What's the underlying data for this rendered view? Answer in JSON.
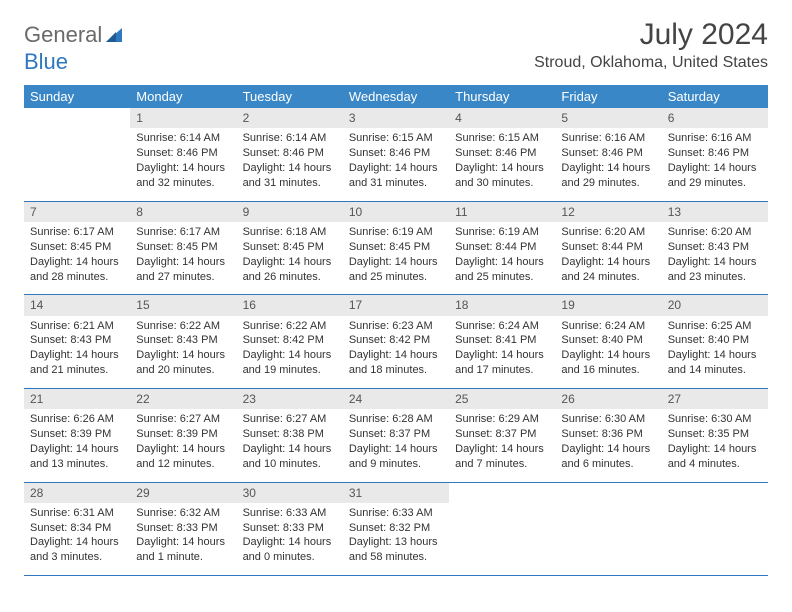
{
  "logo": {
    "word1": "General",
    "word2": "Blue"
  },
  "title": "July 2024",
  "location": "Stroud, Oklahoma, United States",
  "colors": {
    "header_bg": "#3a87c7",
    "header_text": "#ffffff",
    "daynum_bg": "#e9e9e9",
    "row_divider": "#2f78bd",
    "logo_gray": "#6a6a6a",
    "logo_blue": "#2f78bd",
    "body_text": "#333333",
    "background": "#ffffff"
  },
  "fonts": {
    "title_size_pt": 22,
    "location_size_pt": 12,
    "dayheader_size_pt": 10,
    "cell_size_pt": 8
  },
  "day_headers": [
    "Sunday",
    "Monday",
    "Tuesday",
    "Wednesday",
    "Thursday",
    "Friday",
    "Saturday"
  ],
  "weeks": [
    {
      "nums": [
        "",
        "1",
        "2",
        "3",
        "4",
        "5",
        "6"
      ],
      "cells": [
        "",
        "Sunrise: 6:14 AM\nSunset: 8:46 PM\nDaylight: 14 hours and 32 minutes.",
        "Sunrise: 6:14 AM\nSunset: 8:46 PM\nDaylight: 14 hours and 31 minutes.",
        "Sunrise: 6:15 AM\nSunset: 8:46 PM\nDaylight: 14 hours and 31 minutes.",
        "Sunrise: 6:15 AM\nSunset: 8:46 PM\nDaylight: 14 hours and 30 minutes.",
        "Sunrise: 6:16 AM\nSunset: 8:46 PM\nDaylight: 14 hours and 29 minutes.",
        "Sunrise: 6:16 AM\nSunset: 8:46 PM\nDaylight: 14 hours and 29 minutes."
      ]
    },
    {
      "nums": [
        "7",
        "8",
        "9",
        "10",
        "11",
        "12",
        "13"
      ],
      "cells": [
        "Sunrise: 6:17 AM\nSunset: 8:45 PM\nDaylight: 14 hours and 28 minutes.",
        "Sunrise: 6:17 AM\nSunset: 8:45 PM\nDaylight: 14 hours and 27 minutes.",
        "Sunrise: 6:18 AM\nSunset: 8:45 PM\nDaylight: 14 hours and 26 minutes.",
        "Sunrise: 6:19 AM\nSunset: 8:45 PM\nDaylight: 14 hours and 25 minutes.",
        "Sunrise: 6:19 AM\nSunset: 8:44 PM\nDaylight: 14 hours and 25 minutes.",
        "Sunrise: 6:20 AM\nSunset: 8:44 PM\nDaylight: 14 hours and 24 minutes.",
        "Sunrise: 6:20 AM\nSunset: 8:43 PM\nDaylight: 14 hours and 23 minutes."
      ]
    },
    {
      "nums": [
        "14",
        "15",
        "16",
        "17",
        "18",
        "19",
        "20"
      ],
      "cells": [
        "Sunrise: 6:21 AM\nSunset: 8:43 PM\nDaylight: 14 hours and 21 minutes.",
        "Sunrise: 6:22 AM\nSunset: 8:43 PM\nDaylight: 14 hours and 20 minutes.",
        "Sunrise: 6:22 AM\nSunset: 8:42 PM\nDaylight: 14 hours and 19 minutes.",
        "Sunrise: 6:23 AM\nSunset: 8:42 PM\nDaylight: 14 hours and 18 minutes.",
        "Sunrise: 6:24 AM\nSunset: 8:41 PM\nDaylight: 14 hours and 17 minutes.",
        "Sunrise: 6:24 AM\nSunset: 8:40 PM\nDaylight: 14 hours and 16 minutes.",
        "Sunrise: 6:25 AM\nSunset: 8:40 PM\nDaylight: 14 hours and 14 minutes."
      ]
    },
    {
      "nums": [
        "21",
        "22",
        "23",
        "24",
        "25",
        "26",
        "27"
      ],
      "cells": [
        "Sunrise: 6:26 AM\nSunset: 8:39 PM\nDaylight: 14 hours and 13 minutes.",
        "Sunrise: 6:27 AM\nSunset: 8:39 PM\nDaylight: 14 hours and 12 minutes.",
        "Sunrise: 6:27 AM\nSunset: 8:38 PM\nDaylight: 14 hours and 10 minutes.",
        "Sunrise: 6:28 AM\nSunset: 8:37 PM\nDaylight: 14 hours and 9 minutes.",
        "Sunrise: 6:29 AM\nSunset: 8:37 PM\nDaylight: 14 hours and 7 minutes.",
        "Sunrise: 6:30 AM\nSunset: 8:36 PM\nDaylight: 14 hours and 6 minutes.",
        "Sunrise: 6:30 AM\nSunset: 8:35 PM\nDaylight: 14 hours and 4 minutes."
      ]
    },
    {
      "nums": [
        "28",
        "29",
        "30",
        "31",
        "",
        "",
        ""
      ],
      "cells": [
        "Sunrise: 6:31 AM\nSunset: 8:34 PM\nDaylight: 14 hours and 3 minutes.",
        "Sunrise: 6:32 AM\nSunset: 8:33 PM\nDaylight: 14 hours and 1 minute.",
        "Sunrise: 6:33 AM\nSunset: 8:33 PM\nDaylight: 14 hours and 0 minutes.",
        "Sunrise: 6:33 AM\nSunset: 8:32 PM\nDaylight: 13 hours and 58 minutes.",
        "",
        "",
        ""
      ]
    }
  ]
}
